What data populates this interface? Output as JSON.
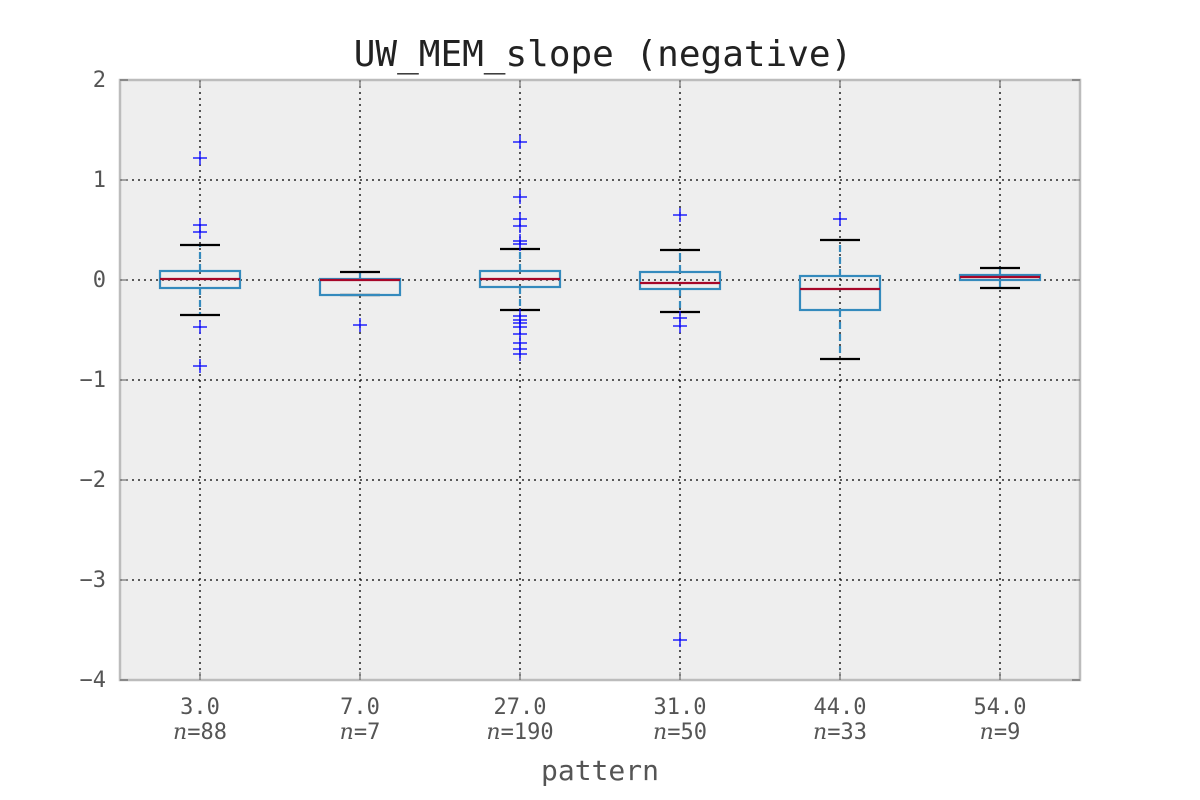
{
  "chart_data": {
    "type": "box",
    "title": "UW_MEM_slope (negative)",
    "xlabel": "pattern",
    "ylabel": "",
    "ylim": [
      -4,
      2
    ],
    "yticks": [
      -4,
      -3,
      -2,
      -1,
      0,
      1,
      2
    ],
    "ytick_labels": [
      "−4",
      "−3",
      "−2",
      "−1",
      "0",
      "1",
      "2"
    ],
    "grid": true,
    "n_prefix": "n",
    "colors": {
      "box": "#348ABD",
      "median": "#A60628",
      "whisker_cap": "#000000",
      "flier": "#0000FF",
      "background": "#EEEEEE",
      "spine": "#BCBCBC"
    },
    "categories": [
      "3.0",
      "7.0",
      "27.0",
      "31.0",
      "44.0",
      "54.0"
    ],
    "counts": [
      "88",
      "7",
      "190",
      "50",
      "33",
      "9"
    ],
    "boxes": [
      {
        "label": "3.0",
        "n": 88,
        "whislo": -0.35,
        "q1": -0.08,
        "median": 0.01,
        "q3": 0.09,
        "whishi": 0.35,
        "fliers": [
          1.22,
          0.55,
          0.48,
          -0.47,
          -0.86
        ]
      },
      {
        "label": "7.0",
        "n": 7,
        "whislo": -0.15,
        "q1": -0.15,
        "median": 0.0,
        "q3": 0.01,
        "whishi": 0.08,
        "fliers": [
          -0.45
        ]
      },
      {
        "label": "27.0",
        "n": 190,
        "whislo": -0.3,
        "q1": -0.07,
        "median": 0.01,
        "q3": 0.09,
        "whishi": 0.31,
        "fliers": [
          1.38,
          0.83,
          0.61,
          0.54,
          0.39,
          0.36,
          -0.36,
          -0.4,
          -0.43,
          -0.47,
          -0.54,
          -0.63,
          -0.69,
          -0.74
        ]
      },
      {
        "label": "31.0",
        "n": 50,
        "whislo": -0.32,
        "q1": -0.09,
        "median": -0.03,
        "q3": 0.08,
        "whishi": 0.3,
        "fliers": [
          0.65,
          -0.38,
          -0.46,
          -3.6
        ]
      },
      {
        "label": "44.0",
        "n": 33,
        "whislo": -0.79,
        "q1": -0.3,
        "median": -0.09,
        "q3": 0.04,
        "whishi": 0.4,
        "fliers": [
          0.61
        ]
      },
      {
        "label": "54.0",
        "n": 9,
        "whislo": -0.08,
        "q1": 0.0,
        "median": 0.03,
        "q3": 0.05,
        "whishi": 0.12,
        "fliers": []
      }
    ]
  }
}
